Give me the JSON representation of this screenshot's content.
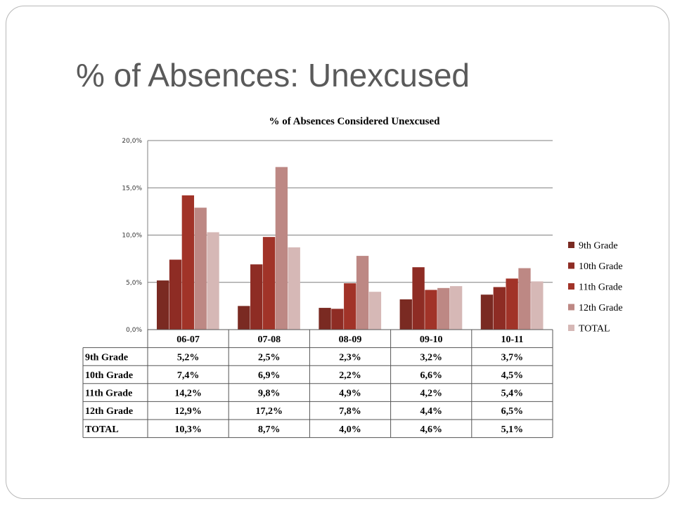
{
  "slide": {
    "title": "% of Absences:  Unexcused"
  },
  "chart_data": {
    "type": "bar",
    "title": "% of Absences Considered Unexcused",
    "categories": [
      "06-07",
      "07-08",
      "08-09",
      "09-10",
      "10-11"
    ],
    "ylim": [
      0,
      20
    ],
    "yticks": [
      0,
      5,
      10,
      15,
      20
    ],
    "ytick_labels": [
      "0,0%",
      "5,0%",
      "10,0%",
      "15,0%",
      "20,0%"
    ],
    "grid": true,
    "legend": "right",
    "series": [
      {
        "name": "9th Grade",
        "color": "#7a2a22",
        "values": [
          5.2,
          2.5,
          2.3,
          3.2,
          3.7
        ],
        "labels": [
          "5,2%",
          "2,5%",
          "2,3%",
          "3,2%",
          "3,7%"
        ]
      },
      {
        "name": "10th Grade",
        "color": "#8e2c24",
        "values": [
          7.4,
          6.9,
          2.2,
          6.6,
          4.5
        ],
        "labels": [
          "7,4%",
          "6,9%",
          "2,2%",
          "6,6%",
          "4,5%"
        ]
      },
      {
        "name": "11th Grade",
        "color": "#a13328",
        "values": [
          14.2,
          9.8,
          4.9,
          4.2,
          5.4
        ],
        "labels": [
          "14,2%",
          "9,8%",
          "4,9%",
          "4,2%",
          "5,4%"
        ]
      },
      {
        "name": "12th Grade",
        "color": "#bd8884",
        "values": [
          12.9,
          17.2,
          7.8,
          4.4,
          6.5
        ],
        "labels": [
          "12,9%",
          "17,2%",
          "7,8%",
          "4,4%",
          "6,5%"
        ]
      },
      {
        "name": "TOTAL",
        "color": "#d6b8b6",
        "values": [
          10.3,
          8.7,
          4.0,
          4.6,
          5.1
        ],
        "labels": [
          "10,3%",
          "8,7%",
          "4,0%",
          "4,6%",
          "5,1%"
        ]
      }
    ]
  }
}
